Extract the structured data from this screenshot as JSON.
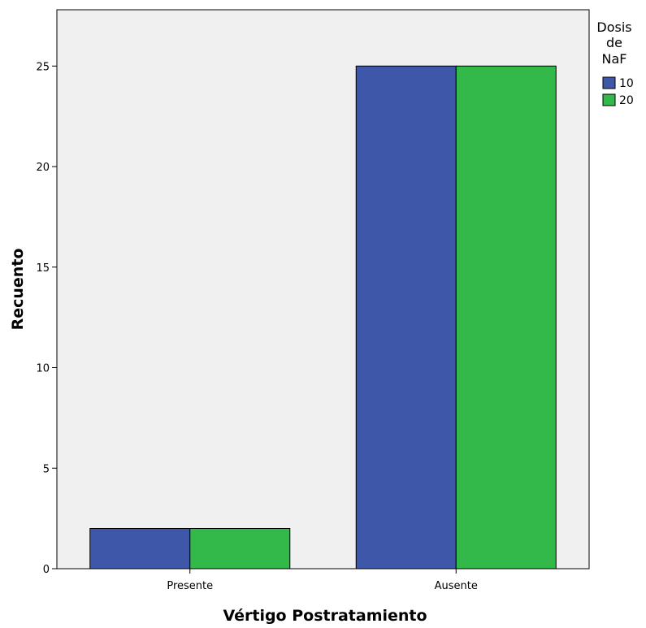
{
  "chart_data": {
    "type": "bar",
    "title": "",
    "xlabel": "Vértigo Postratamiento",
    "ylabel": "Recuento",
    "categories": [
      "Presente",
      "Ausente"
    ],
    "series": [
      {
        "name": "10",
        "color": "#3f57a8",
        "values": [
          2,
          25
        ]
      },
      {
        "name": "20",
        "color": "#33b84a",
        "values": [
          2,
          25
        ]
      }
    ],
    "ylim": [
      0,
      27.8
    ],
    "yticks": [
      0,
      5,
      10,
      15,
      20,
      25
    ],
    "legend": {
      "title_lines": [
        "Dosis",
        "de",
        "NaF"
      ],
      "position": "right-top"
    },
    "grid": false,
    "plot_background": "#f0f0f0"
  }
}
